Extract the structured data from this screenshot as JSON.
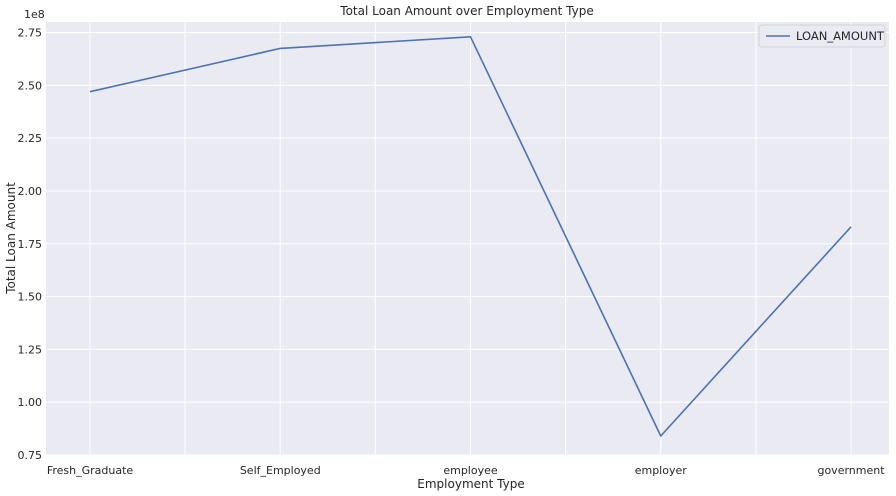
{
  "chart_data": {
    "type": "line",
    "title": "Total Loan Amount over Employment Type",
    "xlabel": "Employment Type",
    "ylabel": "Total Loan Amount",
    "offset_label": "1e8",
    "categories": [
      "Fresh_Graduate",
      "Self_Employed",
      "employee",
      "employer",
      "government"
    ],
    "series": [
      {
        "name": "LOAN_AMOUNT",
        "values": [
          2.47,
          2.675,
          2.73,
          0.84,
          1.83
        ],
        "color": "#4c72b0"
      }
    ],
    "ylim": [
      0.75,
      2.8
    ],
    "yticks": [
      "0.75",
      "1.00",
      "1.25",
      "1.50",
      "1.75",
      "2.00",
      "2.25",
      "2.50",
      "2.75"
    ],
    "grid": true,
    "legend_position": "top-right",
    "background_color": "#eaeaf2",
    "grid_color": "#ffffff"
  }
}
